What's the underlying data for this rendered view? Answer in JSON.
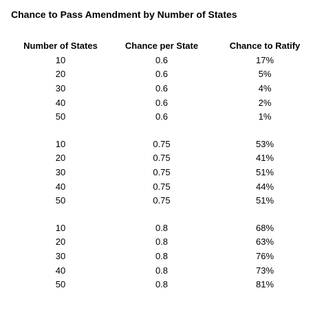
{
  "title": "Chance to Pass Amendment by Number of States",
  "headers": [
    "Number of States",
    "Chance per State",
    "Chance to Ratify"
  ],
  "groups": [
    {
      "rows": [
        [
          "10",
          "0.6",
          "17%"
        ],
        [
          "20",
          "0.6",
          "5%"
        ],
        [
          "30",
          "0.6",
          "4%"
        ],
        [
          "40",
          "0.6",
          "2%"
        ],
        [
          "50",
          "0.6",
          "1%"
        ]
      ]
    },
    {
      "rows": [
        [
          "10",
          "0.75",
          "53%"
        ],
        [
          "20",
          "0.75",
          "41%"
        ],
        [
          "30",
          "0.75",
          "51%"
        ],
        [
          "40",
          "0.75",
          "44%"
        ],
        [
          "50",
          "0.75",
          "51%"
        ]
      ]
    },
    {
      "rows": [
        [
          "10",
          "0.8",
          "68%"
        ],
        [
          "20",
          "0.8",
          "63%"
        ],
        [
          "30",
          "0.8",
          "76%"
        ],
        [
          "40",
          "0.8",
          "73%"
        ],
        [
          "50",
          "0.8",
          "81%"
        ]
      ]
    }
  ]
}
